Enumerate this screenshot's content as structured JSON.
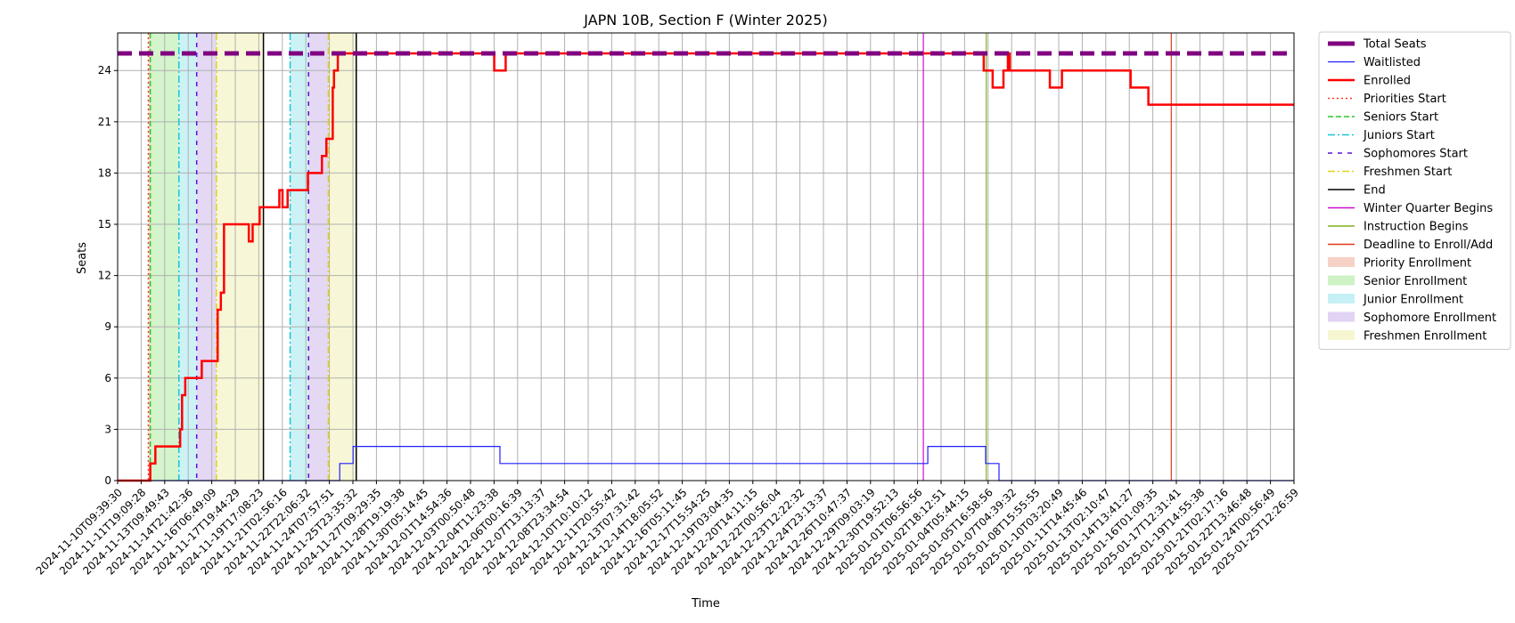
{
  "chart_data": {
    "type": "line",
    "title": "JAPN 10B, Section F (Winter 2025)",
    "xlabel": "Time",
    "ylabel": "Seats",
    "x_range": [
      "2024-11-10T09:39:30",
      "2025-01-26T12:00:00"
    ],
    "ylim": [
      0,
      26.2
    ],
    "y_ticks": [
      0,
      3,
      6,
      9,
      12,
      15,
      18,
      21,
      24
    ],
    "grid": true,
    "legend_position": "outside-right",
    "x_tick_labels": [
      "2024-11-10T09:39:30",
      "2024-11-11T19:09:28",
      "2024-11-13T09:49:43",
      "2024-11-14T21:42:36",
      "2024-11-16T06:49:09",
      "2024-11-17T19:44:29",
      "2024-11-19T17:08:23",
      "2024-11-21T02:56:16",
      "2024-11-22T22:06:32",
      "2024-11-24T07:57:51",
      "2024-11-25T23:35:32",
      "2024-11-27T09:29:35",
      "2024-11-28T19:19:38",
      "2024-11-30T05:14:45",
      "2024-12-01T14:54:36",
      "2024-12-03T00:50:48",
      "2024-12-04T11:23:38",
      "2024-12-06T00:16:39",
      "2024-12-07T13:13:37",
      "2024-12-08T23:34:54",
      "2024-12-10T10:10:12",
      "2024-12-11T20:55:42",
      "2024-12-13T07:31:42",
      "2024-12-14T18:05:52",
      "2024-12-16T05:11:45",
      "2024-12-17T15:54:25",
      "2024-12-19T03:04:35",
      "2024-12-20T14:11:15",
      "2024-12-22T00:56:04",
      "2024-12-23T12:22:32",
      "2024-12-24T23:13:37",
      "2024-12-26T10:47:37",
      "2024-12-29T09:03:19",
      "2024-12-30T19:52:13",
      "2025-01-01T06:56:56",
      "2025-01-02T18:12:51",
      "2025-01-04T05:44:15",
      "2025-01-05T16:58:56",
      "2025-01-07T04:39:32",
      "2025-01-08T15:55:55",
      "2025-01-10T03:20:49",
      "2025-01-11T14:45:46",
      "2025-01-13T02:10:47",
      "2025-01-14T13:41:27",
      "2025-01-16T01:09:35",
      "2025-01-17T12:31:41",
      "2025-01-19T14:55:38",
      "2025-01-21T02:17:16",
      "2025-01-22T13:46:48",
      "2025-01-24T00:56:49",
      "2025-01-25T12:26:59"
    ],
    "regions": [
      {
        "name": "Priority Enrollment",
        "start": "2024-11-12T10:00:00",
        "end": "2024-11-12T13:00:00",
        "color": "#f4c6b8"
      },
      {
        "name": "Senior Enrollment",
        "start": "2024-11-12T13:00:00",
        "end": "2024-11-14T10:00:00",
        "color": "#c2efb6"
      },
      {
        "name": "Junior Enrollment",
        "start": "2024-11-14T10:00:00",
        "end": "2024-11-15T14:00:00",
        "color": "#b7ecf2"
      },
      {
        "name": "Sophomore Enrollment",
        "start": "2024-11-15T14:00:00",
        "end": "2024-11-16T21:00:00",
        "color": "#d9c8f0"
      },
      {
        "name": "Freshmen Enrollment",
        "start": "2024-11-16T21:00:00",
        "end": "2024-11-19T23:00:00",
        "color": "#f4f4c6"
      },
      {
        "name": "Junior Enrollment",
        "start": "2024-11-21T17:00:00",
        "end": "2024-11-22T22:00:00",
        "color": "#b7ecf2"
      },
      {
        "name": "Sophomore Enrollment",
        "start": "2024-11-22T22:00:00",
        "end": "2024-11-24T05:00:00",
        "color": "#d9c8f0"
      },
      {
        "name": "Freshmen Enrollment",
        "start": "2024-11-24T05:00:00",
        "end": "2024-11-26T01:00:00",
        "color": "#f4f4c6"
      }
    ],
    "vlines": [
      {
        "name": "Priorities Start",
        "x": "2024-11-12T10:00:00",
        "color": "#ff3b1f",
        "dash": "2,3",
        "width": 1.5
      },
      {
        "name": "Seniors Start",
        "x": "2024-11-12T13:00:00",
        "color": "#2ac72a",
        "dash": "6,3",
        "width": 1.5
      },
      {
        "name": "Juniors Start",
        "x": "2024-11-14T10:00:00",
        "color": "#18c6d6",
        "dash": "8,3,2,3",
        "width": 1.5
      },
      {
        "name": "Sophomores Start",
        "x": "2024-11-15T14:00:00",
        "color": "#5a14d0",
        "dash": "5,6",
        "width": 1.5
      },
      {
        "name": "Freshmen Start",
        "x": "2024-11-16T21:00:00",
        "color": "#e0d21a",
        "dash": "8,3,2,3",
        "width": 1.5
      },
      {
        "name": "End",
        "x": "2024-11-19T23:00:00",
        "color": "#000000",
        "dash": "",
        "width": 1.5
      },
      {
        "name": "Juniors Start",
        "x": "2024-11-21T17:00:00",
        "color": "#18c6d6",
        "dash": "8,3,2,3",
        "width": 1.5
      },
      {
        "name": "Sophomores Start",
        "x": "2024-11-22T22:00:00",
        "color": "#5a14d0",
        "dash": "5,6",
        "width": 1.5
      },
      {
        "name": "Freshmen Start",
        "x": "2024-11-24T05:00:00",
        "color": "#e0d21a",
        "dash": "8,3,2,3",
        "width": 1.5
      },
      {
        "name": "End",
        "x": "2024-11-26T01:00:00",
        "color": "#000000",
        "dash": "",
        "width": 1.5
      },
      {
        "name": "Winter Quarter Begins",
        "x": "2025-01-02T05:00:00",
        "color": "#d00bd0",
        "dash": "",
        "width": 1.2
      },
      {
        "name": "Instruction Begins",
        "x": "2025-01-06T08:00:00",
        "color": "#80b01f",
        "dash": "",
        "width": 1.2
      },
      {
        "name": "Deadline to Enroll/Add",
        "x": "2025-01-18T11:00:00",
        "color": "#e0381a",
        "dash": "",
        "width": 1.2
      }
    ],
    "series": [
      {
        "name": "Total Seats",
        "color": "#800080",
        "width": 5,
        "dash": "16,8",
        "steps": [
          [
            "2024-11-10T09:39:30",
            25
          ]
        ]
      },
      {
        "name": "Waitlisted",
        "color": "#1f1fff",
        "width": 1.2,
        "dash": "",
        "steps": [
          [
            "2024-11-10T09:39:30",
            0
          ],
          [
            "2024-11-24T23:00:00",
            1
          ],
          [
            "2024-11-25T20:00:00",
            2
          ],
          [
            "2024-12-05T11:00:00",
            1
          ],
          [
            "2025-01-02T12:00:00",
            2
          ],
          [
            "2025-01-06T07:00:00",
            1
          ],
          [
            "2025-01-07T04:00:00",
            0
          ]
        ]
      },
      {
        "name": "Enrolled",
        "color": "#ff0000",
        "width": 2.5,
        "dash": "",
        "steps": [
          [
            "2024-11-10T09:39:30",
            0
          ],
          [
            "2024-11-12T13:00:00",
            1
          ],
          [
            "2024-11-12T21:00:00",
            2
          ],
          [
            "2024-11-14T12:00:00",
            3
          ],
          [
            "2024-11-14T15:00:00",
            5
          ],
          [
            "2024-11-14T20:00:00",
            6
          ],
          [
            "2024-11-15T22:00:00",
            7
          ],
          [
            "2024-11-16T23:00:00",
            10
          ],
          [
            "2024-11-17T04:00:00",
            11
          ],
          [
            "2024-11-17T09:00:00",
            15
          ],
          [
            "2024-11-19T00:00:00",
            14
          ],
          [
            "2024-11-19T06:00:00",
            15
          ],
          [
            "2024-11-19T17:00:00",
            16
          ],
          [
            "2024-11-21T00:00:00",
            17
          ],
          [
            "2024-11-21T05:00:00",
            16
          ],
          [
            "2024-11-21T13:00:00",
            17
          ],
          [
            "2024-11-22T21:00:00",
            18
          ],
          [
            "2024-11-23T19:00:00",
            19
          ],
          [
            "2024-11-24T02:00:00",
            20
          ],
          [
            "2024-11-24T12:00:00",
            23
          ],
          [
            "2024-11-24T14:00:00",
            24
          ],
          [
            "2024-11-24T20:00:00",
            25
          ],
          [
            "2024-12-05T02:00:00",
            24
          ],
          [
            "2024-12-05T20:00:00",
            25
          ],
          [
            "2025-01-06T04:00:00",
            24
          ],
          [
            "2025-01-06T18:00:00",
            23
          ],
          [
            "2025-01-07T11:00:00",
            24
          ],
          [
            "2025-01-07T18:00:00",
            25
          ],
          [
            "2025-01-07T21:00:00",
            24
          ],
          [
            "2025-01-10T12:00:00",
            23
          ],
          [
            "2025-01-11T07:00:00",
            24
          ],
          [
            "2025-01-15T19:00:00",
            23
          ],
          [
            "2025-01-16T23:00:00",
            22
          ]
        ]
      }
    ],
    "legend": [
      {
        "label": "Total Seats",
        "kind": "line",
        "color": "#800080",
        "width": 5,
        "dash": ""
      },
      {
        "label": "Waitlisted",
        "kind": "line",
        "color": "#1f1fff",
        "width": 1.2,
        "dash": ""
      },
      {
        "label": "Enrolled",
        "kind": "line",
        "color": "#ff0000",
        "width": 2.5,
        "dash": ""
      },
      {
        "label": "Priorities Start",
        "kind": "line",
        "color": "#ff3b1f",
        "width": 1.5,
        "dash": "2,3"
      },
      {
        "label": "Seniors Start",
        "kind": "line",
        "color": "#2ac72a",
        "width": 1.5,
        "dash": "6,3"
      },
      {
        "label": "Juniors Start",
        "kind": "line",
        "color": "#18c6d6",
        "width": 1.5,
        "dash": "8,3,2,3"
      },
      {
        "label": "Sophomores Start",
        "kind": "line",
        "color": "#5a14d0",
        "width": 1.5,
        "dash": "5,6"
      },
      {
        "label": "Freshmen Start",
        "kind": "line",
        "color": "#e0d21a",
        "width": 1.5,
        "dash": "8,3,2,3"
      },
      {
        "label": "End",
        "kind": "line",
        "color": "#000000",
        "width": 1.5,
        "dash": ""
      },
      {
        "label": "Winter Quarter Begins",
        "kind": "line",
        "color": "#d00bd0",
        "width": 1.5,
        "dash": ""
      },
      {
        "label": "Instruction Begins",
        "kind": "line",
        "color": "#80b01f",
        "width": 1.5,
        "dash": ""
      },
      {
        "label": "Deadline to Enroll/Add",
        "kind": "line",
        "color": "#e0381a",
        "width": 1.5,
        "dash": ""
      },
      {
        "label": "Priority Enrollment",
        "kind": "patch",
        "color": "#f4c6b8"
      },
      {
        "label": "Senior Enrollment",
        "kind": "patch",
        "color": "#c2efb6"
      },
      {
        "label": "Junior Enrollment",
        "kind": "patch",
        "color": "#b7ecf2"
      },
      {
        "label": "Sophomore Enrollment",
        "kind": "patch",
        "color": "#d9c8f0"
      },
      {
        "label": "Freshmen Enrollment",
        "kind": "patch",
        "color": "#f4f4c6"
      }
    ]
  }
}
